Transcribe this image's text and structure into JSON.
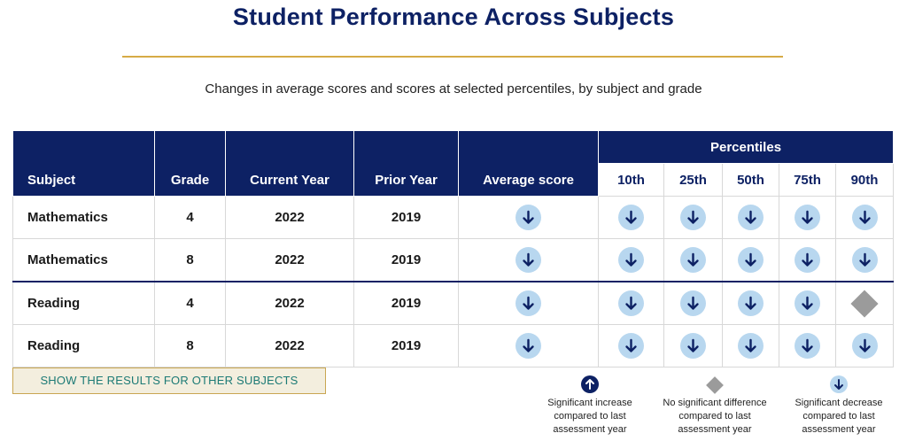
{
  "title": "Student Performance Across Subjects",
  "subtitle": "Changes in average scores and scores at selected percentiles, by subject and grade",
  "table": {
    "headers": {
      "subject": "Subject",
      "grade": "Grade",
      "current_year": "Current Year",
      "prior_year": "Prior Year",
      "average_score": "Average score",
      "percentiles_group": "Percentiles",
      "percentiles": [
        "10th",
        "25th",
        "50th",
        "75th",
        "90th"
      ]
    },
    "rows": [
      {
        "subject": "Mathematics",
        "grade": "4",
        "current_year": "2022",
        "prior_year": "2019",
        "average": "decrease",
        "percentiles": [
          "decrease",
          "decrease",
          "decrease",
          "decrease",
          "decrease"
        ]
      },
      {
        "subject": "Mathematics",
        "grade": "8",
        "current_year": "2022",
        "prior_year": "2019",
        "average": "decrease",
        "percentiles": [
          "decrease",
          "decrease",
          "decrease",
          "decrease",
          "decrease"
        ]
      },
      {
        "subject": "Reading",
        "grade": "4",
        "current_year": "2022",
        "prior_year": "2019",
        "average": "decrease",
        "percentiles": [
          "decrease",
          "decrease",
          "decrease",
          "decrease",
          "no-difference"
        ]
      },
      {
        "subject": "Reading",
        "grade": "8",
        "current_year": "2022",
        "prior_year": "2019",
        "average": "decrease",
        "percentiles": [
          "decrease",
          "decrease",
          "decrease",
          "decrease",
          "decrease"
        ]
      }
    ]
  },
  "show_button_label": "SHOW THE RESULTS FOR OTHER SUBJECTS",
  "legend": {
    "increase": "Significant increase compared to last assessment year",
    "no_difference": "No significant difference compared to last assessment year",
    "decrease": "Significant decrease compared to last assessment year"
  },
  "icons": {
    "decrease": "arrow-down-circle-icon",
    "increase": "arrow-up-circle-icon",
    "no_difference": "gray-diamond-icon"
  },
  "colors": {
    "navy": "#0d2164",
    "gold": "#d6ab45",
    "decrease_circle": "#b8d7ef",
    "no_difference": "#9b9b9b",
    "button_text": "#1c7a75"
  }
}
